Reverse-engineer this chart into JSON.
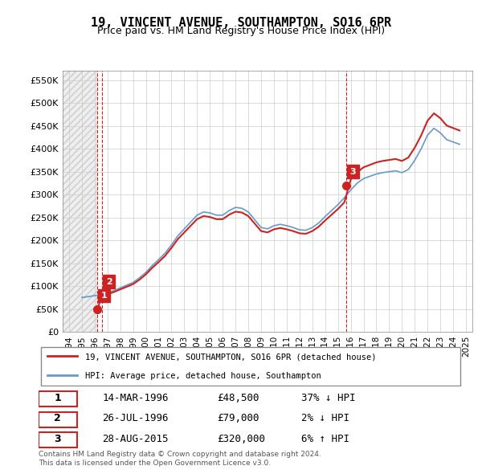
{
  "title": "19, VINCENT AVENUE, SOUTHAMPTON, SO16 6PR",
  "subtitle": "Price paid vs. HM Land Registry's House Price Index (HPI)",
  "ylabel_values": [
    "£0",
    "£50K",
    "£100K",
    "£150K",
    "£200K",
    "£250K",
    "£300K",
    "£350K",
    "£400K",
    "£450K",
    "£500K",
    "£550K"
  ],
  "ytick_values": [
    0,
    50000,
    100000,
    150000,
    200000,
    250000,
    300000,
    350000,
    400000,
    450000,
    500000,
    550000
  ],
  "xlim": [
    1993.5,
    2025.5
  ],
  "ylim": [
    0,
    570000
  ],
  "transactions": [
    {
      "date_num": 1996.2,
      "price": 48500,
      "label": "1"
    },
    {
      "date_num": 1996.57,
      "price": 79000,
      "label": "2"
    },
    {
      "date_num": 2015.65,
      "price": 320000,
      "label": "3"
    }
  ],
  "legend_line1": "19, VINCENT AVENUE, SOUTHAMPTON, SO16 6PR (detached house)",
  "legend_line2": "HPI: Average price, detached house, Southampton",
  "table_rows": [
    {
      "num": "1",
      "date": "14-MAR-1996",
      "price": "£48,500",
      "hpi": "37% ↓ HPI"
    },
    {
      "num": "2",
      "date": "26-JUL-1996",
      "price": "£79,000",
      "hpi": "2% ↓ HPI"
    },
    {
      "num": "3",
      "date": "28-AUG-2015",
      "price": "£320,000",
      "hpi": "6% ↑ HPI"
    }
  ],
  "footer1": "Contains HM Land Registry data © Crown copyright and database right 2024.",
  "footer2": "This data is licensed under the Open Government Licence v3.0.",
  "hpi_color": "#6699cc",
  "price_color": "#cc2222",
  "point_color": "#cc2222",
  "label_box_color": "#cc2222",
  "bg_hatch_color": "#dddddd",
  "grid_color": "#cccccc",
  "dashed_line_color_red": "#cc2222",
  "dashed_line_color_blue": "#aabbdd",
  "hpi_data_x": [
    1995.0,
    1995.5,
    1996.0,
    1996.3,
    1996.6,
    1997.0,
    1997.5,
    1998.0,
    1998.5,
    1999.0,
    1999.5,
    2000.0,
    2000.5,
    2001.0,
    2001.5,
    2002.0,
    2002.5,
    2003.0,
    2003.5,
    2004.0,
    2004.5,
    2005.0,
    2005.5,
    2006.0,
    2006.5,
    2007.0,
    2007.5,
    2008.0,
    2008.5,
    2009.0,
    2009.5,
    2010.0,
    2010.5,
    2011.0,
    2011.5,
    2012.0,
    2012.5,
    2013.0,
    2013.5,
    2014.0,
    2014.5,
    2015.0,
    2015.5,
    2016.0,
    2016.5,
    2017.0,
    2017.5,
    2018.0,
    2018.5,
    2019.0,
    2019.5,
    2020.0,
    2020.5,
    2021.0,
    2021.5,
    2022.0,
    2022.5,
    2023.0,
    2023.5,
    2024.0,
    2024.5
  ],
  "hpi_data_y": [
    75000,
    77000,
    79000,
    80000,
    82000,
    85000,
    90000,
    96000,
    102000,
    108000,
    118000,
    130000,
    145000,
    158000,
    172000,
    190000,
    210000,
    225000,
    240000,
    255000,
    262000,
    260000,
    255000,
    255000,
    265000,
    272000,
    270000,
    262000,
    245000,
    228000,
    225000,
    232000,
    235000,
    232000,
    228000,
    223000,
    222000,
    228000,
    238000,
    252000,
    265000,
    278000,
    293000,
    310000,
    325000,
    335000,
    340000,
    345000,
    348000,
    350000,
    352000,
    348000,
    355000,
    375000,
    400000,
    430000,
    445000,
    435000,
    420000,
    415000,
    410000
  ],
  "price_line_x": [
    1996.2,
    1996.57,
    2015.65
  ],
  "price_line_y": [
    48500,
    79000,
    320000
  ]
}
